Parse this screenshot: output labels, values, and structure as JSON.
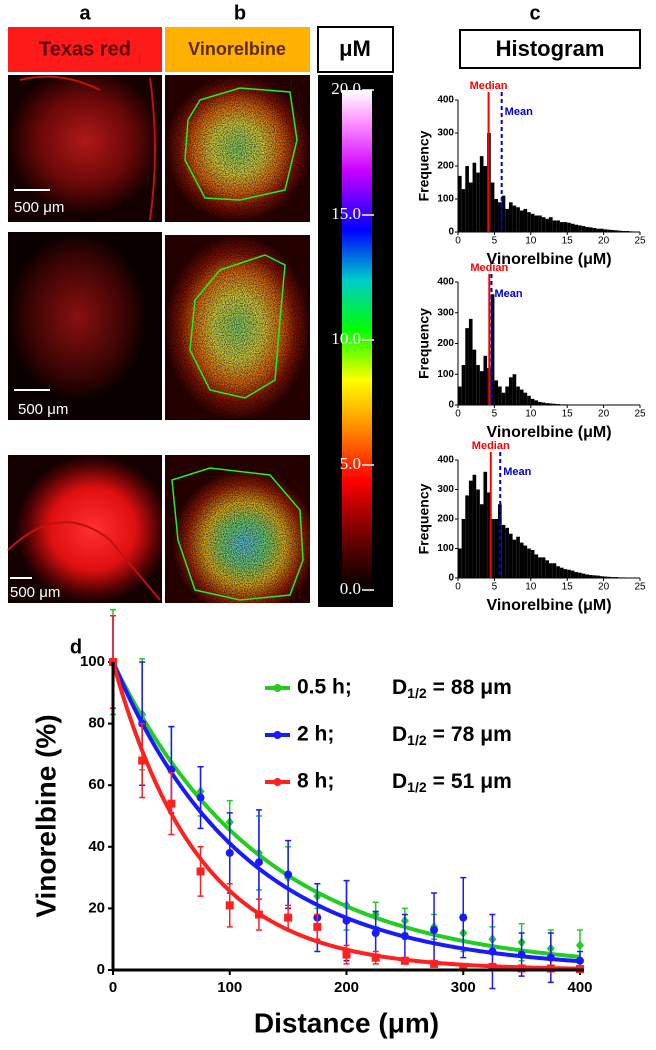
{
  "panels": {
    "letters": [
      "a",
      "b",
      "c",
      "d"
    ],
    "headers": [
      "Texas red",
      "Vinorelbine",
      "Histogram"
    ],
    "scale_bars": [
      "500 μm",
      "500 μm",
      "500 μm"
    ]
  },
  "chart_data": [
    {
      "type": "colorbar",
      "title": "μM",
      "ylim": [
        0,
        20
      ],
      "yticks": [
        {
          "value": 0,
          "label": "0.0"
        },
        {
          "value": 5,
          "label": "5.0"
        },
        {
          "value": 10,
          "label": "10.0"
        },
        {
          "value": 15,
          "label": "15.0"
        },
        {
          "value": 20,
          "label": "20.0"
        }
      ]
    },
    {
      "type": "histogram",
      "xlabel": "Vinorelbine (μM)",
      "ylabel": "Frequency",
      "color": "#000000",
      "bins": [
        0,
        0.5,
        1,
        1.5,
        2,
        2.5,
        3,
        3.5,
        4,
        4.5,
        5,
        5.5,
        6,
        6.5,
        7,
        7.5,
        8,
        8.5,
        9,
        9.5,
        10,
        10.5,
        11,
        11.5,
        12,
        12.5,
        13,
        13.5,
        14,
        14.5,
        15,
        15.5,
        16,
        16.5,
        17,
        17.5,
        18,
        18.5,
        19,
        19.5,
        20,
        20.5,
        21,
        21.5,
        22,
        22.5,
        23,
        23.5,
        24,
        24.5,
        25
      ],
      "counts": [
        170,
        130,
        200,
        150,
        210,
        180,
        230,
        200,
        300,
        150,
        100,
        90,
        110,
        70,
        90,
        80,
        75,
        65,
        70,
        60,
        55,
        50,
        50,
        45,
        40,
        45,
        35,
        35,
        30,
        30,
        28,
        25,
        22,
        20,
        18,
        15,
        14,
        12,
        10,
        10,
        8,
        7,
        6,
        5,
        4,
        3,
        3,
        2,
        1,
        1
      ],
      "median": {
        "label": "Median",
        "value": 4.2,
        "color": "#ff0000"
      },
      "mean": {
        "label": "Mean",
        "value": 6.0,
        "color": "#0000cc"
      },
      "xlim": [
        0,
        25
      ],
      "xticks": [
        0,
        5,
        10,
        15,
        20,
        25
      ],
      "ylim": [
        0,
        400
      ],
      "yticks": [
        0,
        100,
        200,
        300,
        400
      ]
    },
    {
      "type": "histogram",
      "xlabel": "Vinorelbine (μM)",
      "ylabel": "Frequency",
      "color": "#000000",
      "bins": [
        0,
        0.5,
        1,
        1.5,
        2,
        2.5,
        3,
        3.5,
        4,
        4.5,
        5,
        5.5,
        6,
        6.5,
        7,
        7.5,
        8,
        8.5,
        9,
        9.5,
        10,
        10.5,
        11,
        11.5,
        12,
        12.5,
        13,
        13.5,
        14,
        14.5,
        15,
        15.5,
        16,
        16.5,
        17,
        17.5,
        18,
        18.5,
        19,
        19.5,
        20,
        20.5,
        21,
        21.5,
        22,
        22.5,
        23,
        23.5,
        24,
        24.5,
        25
      ],
      "counts": [
        60,
        130,
        250,
        280,
        180,
        130,
        110,
        160,
        120,
        360,
        80,
        60,
        40,
        60,
        90,
        100,
        60,
        50,
        40,
        30,
        20,
        15,
        10,
        8,
        6,
        5,
        4,
        3,
        2,
        2,
        1,
        1,
        0,
        0,
        0,
        0,
        0,
        0,
        0,
        0,
        0,
        0,
        0,
        0,
        0,
        0,
        0,
        0,
        0,
        0
      ],
      "median": {
        "label": "Median",
        "value": 4.3,
        "color": "#ff0000"
      },
      "mean": {
        "label": "Mean",
        "value": 4.6,
        "color": "#0000cc"
      },
      "xlim": [
        0,
        25
      ],
      "xticks": [
        0,
        5,
        10,
        15,
        20,
        25
      ],
      "ylim": [
        0,
        400
      ],
      "yticks": [
        0,
        100,
        200,
        300,
        400
      ]
    },
    {
      "type": "histogram",
      "xlabel": "Vinorelbine (μM)",
      "ylabel": "Frequency",
      "color": "#000000",
      "bins": [
        0,
        0.5,
        1,
        1.5,
        2,
        2.5,
        3,
        3.5,
        4,
        4.5,
        5,
        5.5,
        6,
        6.5,
        7,
        7.5,
        8,
        8.5,
        9,
        9.5,
        10,
        10.5,
        11,
        11.5,
        12,
        12.5,
        13,
        13.5,
        14,
        14.5,
        15,
        15.5,
        16,
        16.5,
        17,
        17.5,
        18,
        18.5,
        19,
        19.5,
        20,
        20.5,
        21,
        21.5,
        22,
        22.5,
        23,
        23.5,
        24,
        24.5,
        25
      ],
      "counts": [
        100,
        200,
        280,
        330,
        350,
        300,
        250,
        360,
        290,
        200,
        200,
        250,
        180,
        170,
        150,
        130,
        140,
        120,
        110,
        100,
        95,
        80,
        70,
        70,
        60,
        50,
        50,
        40,
        35,
        30,
        28,
        25,
        20,
        18,
        15,
        12,
        10,
        9,
        8,
        6,
        5,
        4,
        3,
        3,
        2,
        2,
        1,
        1,
        1,
        0
      ],
      "median": {
        "label": "Median",
        "value": 4.5,
        "color": "#ff0000"
      },
      "mean": {
        "label": "Mean",
        "value": 5.8,
        "color": "#0000cc"
      },
      "xlim": [
        0,
        25
      ],
      "xticks": [
        0,
        5,
        10,
        15,
        20,
        25
      ],
      "ylim": [
        0,
        400
      ],
      "yticks": [
        0,
        100,
        200,
        300,
        400
      ]
    },
    {
      "type": "line",
      "xlabel": "Distance (μm)",
      "ylabel": "Vinorelbine (%)",
      "x": [
        0,
        25,
        50,
        75,
        100,
        125,
        150,
        175,
        200,
        225,
        250,
        275,
        300,
        325,
        350,
        375,
        400
      ],
      "fit_label": {
        "symbol": "D",
        "subscript": "1/2",
        "equals": "=",
        "unit": "μm"
      },
      "series": [
        {
          "name": "0.5 h;",
          "color": "#22cc22",
          "marker": "diamond",
          "d_half": 88,
          "values": [
            100,
            83,
            65,
            58,
            48,
            38,
            30,
            24,
            21,
            18,
            16,
            14,
            12,
            10,
            9,
            7,
            8
          ],
          "errors": [
            17,
            18,
            14,
            8,
            7,
            12,
            10,
            4,
            8,
            4,
            4,
            4,
            6,
            4,
            6,
            6,
            5
          ]
        },
        {
          "name": "2 h;",
          "color": "#1a1aff",
          "marker": "circle",
          "d_half": 78,
          "values": [
            100,
            80,
            65,
            56,
            38,
            35,
            31,
            17,
            16,
            12,
            11,
            13,
            17,
            6,
            5,
            4,
            3
          ],
          "errors": [
            15,
            20,
            14,
            10,
            13,
            17,
            11,
            11,
            13,
            7,
            7,
            12,
            13,
            12,
            7,
            8,
            3
          ]
        },
        {
          "name": "8 h;",
          "color": "#ff2020",
          "marker": "square",
          "d_half": 51,
          "values": [
            100,
            68,
            54,
            32,
            21,
            18,
            17,
            14,
            5,
            4,
            3,
            2,
            1,
            1,
            0.5,
            0.5,
            0.3
          ],
          "errors": [
            15,
            12,
            10,
            8,
            7,
            5,
            4,
            4,
            3,
            2,
            1,
            1,
            1,
            1,
            0.5,
            0.5,
            0.3
          ]
        }
      ],
      "xlim": [
        0,
        400
      ],
      "xticks": [
        0,
        100,
        200,
        300,
        400
      ],
      "ylim": [
        0,
        100
      ],
      "yticks": [
        0,
        20,
        40,
        60,
        80,
        100
      ]
    }
  ]
}
